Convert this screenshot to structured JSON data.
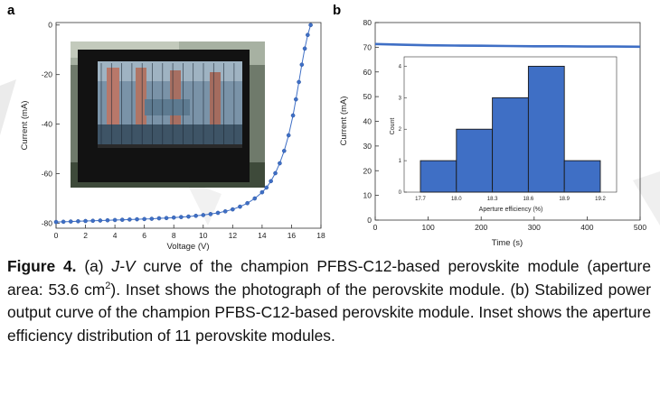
{
  "chart_data": [
    {
      "panel": "a",
      "type": "line",
      "xlabel": "Voltage (V)",
      "ylabel": "Current (mA)",
      "xlim": [
        0,
        18
      ],
      "ylim": [
        -82,
        1
      ],
      "xticks": [
        "0",
        "2",
        "4",
        "6",
        "8",
        "10",
        "12",
        "14",
        "16",
        "18"
      ],
      "yticks": [
        "0",
        "-20",
        "-40",
        "-60",
        "-80"
      ],
      "x": [
        0,
        0.5,
        1,
        1.5,
        2,
        2.5,
        3,
        3.5,
        4,
        4.5,
        5,
        5.5,
        6,
        6.5,
        7,
        7.5,
        8,
        8.5,
        9,
        9.5,
        10,
        10.5,
        11,
        11.5,
        12,
        12.5,
        13,
        13.5,
        14,
        14.3,
        14.6,
        14.9,
        15.2,
        15.5,
        15.8,
        16.1,
        16.3,
        16.5,
        16.7,
        16.9,
        17.1,
        17.3
      ],
      "y": [
        -79.5,
        -79.4,
        -79.3,
        -79.2,
        -79.1,
        -79.0,
        -78.9,
        -78.8,
        -78.7,
        -78.6,
        -78.5,
        -78.4,
        -78.3,
        -78.2,
        -78.0,
        -77.9,
        -77.7,
        -77.5,
        -77.3,
        -77.0,
        -76.7,
        -76.3,
        -75.8,
        -75.2,
        -74.4,
        -73.3,
        -71.9,
        -70.0,
        -67.5,
        -65.6,
        -63.0,
        -59.8,
        -55.8,
        -50.8,
        -44.5,
        -36.5,
        -30.0,
        -23.0,
        -16.0,
        -9.5,
        -4.0,
        0
      ],
      "color": "#3f6fc5",
      "inset": "photograph of the perovskite module"
    },
    {
      "panel": "b",
      "type": "line",
      "xlabel": "Time (s)",
      "ylabel": "Current (mA)",
      "xlim": [
        0,
        500
      ],
      "ylim": [
        0,
        80
      ],
      "xticks": [
        "0",
        "100",
        "200",
        "300",
        "400",
        "500"
      ],
      "yticks": [
        "0",
        "10",
        "20",
        "30",
        "40",
        "50",
        "60",
        "70",
        "80"
      ],
      "x": [
        0,
        50,
        100,
        150,
        200,
        250,
        300,
        350,
        400,
        450,
        500
      ],
      "y": [
        71.3,
        71.0,
        70.8,
        70.7,
        70.6,
        70.5,
        70.4,
        70.4,
        70.3,
        70.3,
        70.2
      ],
      "color": "#3f6fc5",
      "inset": {
        "type": "bar",
        "xlabel": "Aperture efficiency (%)",
        "ylabel": "Count",
        "categories": [
          "17.7-18.0",
          "18.0-18.3",
          "18.3-18.6",
          "18.6-18.9",
          "18.9-19.2"
        ],
        "xticks": [
          "17.7",
          "18.0",
          "18.3",
          "18.6",
          "18.9",
          "19.2"
        ],
        "yticks": [
          "0",
          "1",
          "2",
          "3",
          "4"
        ],
        "values": [
          1,
          2,
          3,
          4,
          1
        ],
        "ylim": [
          0,
          4.3
        ],
        "fill": "#3f6fc5"
      }
    }
  ],
  "caption": {
    "label": "Figure 4.",
    "part1": " (a) ",
    "jv": "J-V",
    "part2": " curve of the champion PFBS-C12-based perovskite module (aperture area: 53.6 cm",
    "sup": "2",
    "part3": "). Inset shows the photograph of the perovskite module. (b) Stabilized power output curve of the champion PFBS-C12-based perovskite module. Inset shows the aperture efficiency distribution of 11 perovskite modules."
  }
}
